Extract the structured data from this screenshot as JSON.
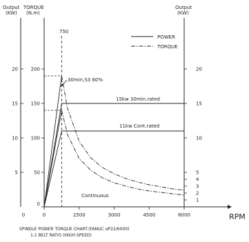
{
  "chart_data": {
    "type": "line",
    "title": "SPINDLE POWER TORQUE CHART.(FANUC αP22/6000)",
    "subtitle": "1:1 BELT RATIO (HIGH SPEED)",
    "xlabel": "RPM",
    "left_outer_label": [
      "Output",
      "(KW)"
    ],
    "left_inner_label": [
      "TORQUE",
      "(N.m)"
    ],
    "right_label": [
      "Output",
      "(KW)"
    ],
    "xlim": [
      0,
      6000
    ],
    "ylim_kw": [
      0,
      25
    ],
    "ylim_torque": [
      0,
      250
    ],
    "x_ticks": [
      "0",
      "1500",
      "3000",
      "4500",
      "6000"
    ],
    "x_tick_values": [
      0,
      1500,
      3000,
      4500,
      6000
    ],
    "kw_ticks_left": [
      "5",
      "10",
      "15",
      "20"
    ],
    "kw_tick_values_left": [
      5,
      10,
      15,
      20
    ],
    "torque_ticks": [
      "0",
      "50",
      "100",
      "150",
      "200"
    ],
    "torque_tick_values": [
      0,
      50,
      100,
      150,
      200
    ],
    "kw_ticks_right": [
      "1",
      "2",
      "3",
      "4",
      "5",
      "10",
      "15",
      "20"
    ],
    "kw_tick_values_right": [
      1,
      2,
      3,
      4,
      5,
      10,
      15,
      20
    ],
    "base_speed": 750,
    "base_speed_label": "750",
    "legend": [
      "POWER",
      "TORQUE"
    ],
    "legend_position": "top-right",
    "series": [
      {
        "name": "POWER",
        "style": "solid",
        "axis": "kw",
        "curves": [
          [
            [
              0,
              0
            ],
            [
              750,
              15
            ],
            [
              6000,
              15
            ]
          ],
          [
            [
              0,
              0
            ],
            [
              750,
              11
            ],
            [
              6000,
              11
            ]
          ]
        ]
      },
      {
        "name": "TORQUE",
        "style": "dashdot",
        "axis": "torque",
        "curves": [
          [
            [
              750,
              190
            ],
            [
              1000,
              143
            ],
            [
              1500,
              95
            ],
            [
              2000,
              71
            ],
            [
              2500,
              57
            ],
            [
              3000,
              48
            ],
            [
              3500,
              41
            ],
            [
              4000,
              36
            ],
            [
              4500,
              32
            ],
            [
              5000,
              29
            ],
            [
              5500,
              26
            ],
            [
              6000,
              24
            ]
          ],
          [
            [
              750,
              140
            ],
            [
              1000,
              105
            ],
            [
              1500,
              70
            ],
            [
              2000,
              53
            ],
            [
              2500,
              42
            ],
            [
              3000,
              35
            ],
            [
              3500,
              30
            ],
            [
              4000,
              26
            ],
            [
              4500,
              23
            ],
            [
              5000,
              21
            ],
            [
              5500,
              19
            ],
            [
              6000,
              17
            ]
          ]
        ]
      }
    ],
    "torque_rise": [
      [
        [
          0,
          0
        ],
        [
          750,
          190
        ]
      ],
      [
        [
          0,
          0
        ],
        [
          750,
          140
        ]
      ]
    ],
    "helper_lines_kw": [
      19,
      14
    ],
    "annotations": {
      "s3": "30min,S3  60%",
      "rated30": "15kw  30min.rated",
      "cont": "11kw    Cont.rated",
      "continuous": "Continuous"
    }
  }
}
